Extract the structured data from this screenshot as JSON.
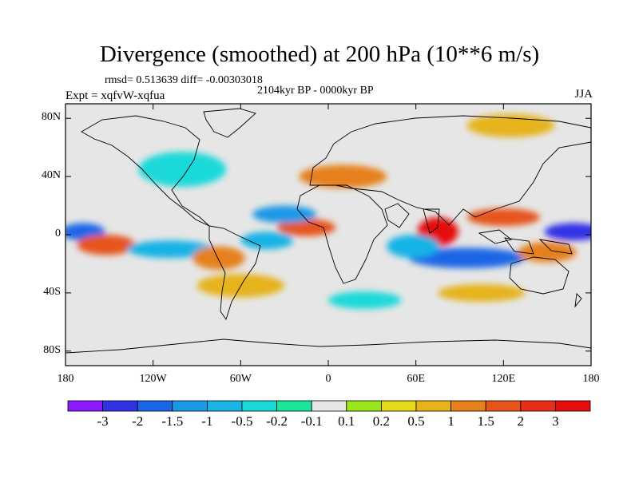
{
  "chart_data": {
    "type": "heatmap",
    "title": "Divergence (smoothed) at 200 hPa (10**6 m/s)",
    "stats": "rmsd= 0.513639 diff= -0.00303018",
    "period": "2104kyr BP - 0000kyr BP",
    "experiment": "Expt = xqfvW-xqfua",
    "season": "JJA",
    "xlim": [
      -180,
      180
    ],
    "ylim": [
      -90,
      90
    ],
    "x_ticks": [
      {
        "value": -180,
        "label": "180"
      },
      {
        "value": -120,
        "label": "120W"
      },
      {
        "value": -60,
        "label": "60W"
      },
      {
        "value": 0,
        "label": "0"
      },
      {
        "value": 60,
        "label": "60E"
      },
      {
        "value": 120,
        "label": "120E"
      },
      {
        "value": 180,
        "label": "180"
      }
    ],
    "y_ticks": [
      {
        "value": 80,
        "label": "80N"
      },
      {
        "value": 40,
        "label": "40N"
      },
      {
        "value": 0,
        "label": "0"
      },
      {
        "value": -40,
        "label": "40S"
      },
      {
        "value": -80,
        "label": "80S"
      }
    ],
    "colorbar": {
      "labels": [
        "-3",
        "-2",
        "-1.5",
        "-1",
        "-0.5",
        "-0.2",
        "-0.1",
        "0.1",
        "0.2",
        "0.5",
        "1",
        "1.5",
        "2",
        "3"
      ],
      "colors": [
        "#8c1aff",
        "#3333e6",
        "#1a66e6",
        "#1a99e6",
        "#19b3e6",
        "#1ad9d9",
        "#1ae699",
        "#e6e6e6",
        "#99e61a",
        "#e6d91a",
        "#e6b31a",
        "#e6801a",
        "#e6551a",
        "#e62e1a",
        "#e60d0d"
      ]
    },
    "features": [
      {
        "lon": 75,
        "lat": 2,
        "value": 3,
        "rx": 14,
        "ry": 10
      },
      {
        "lon": 95,
        "lat": -16,
        "value": -2,
        "rx": 40,
        "ry": 7
      },
      {
        "lon": 58,
        "lat": -8,
        "value": -1,
        "rx": 18,
        "ry": 8
      },
      {
        "lon": 168,
        "lat": 2,
        "value": -2.5,
        "rx": 20,
        "ry": 6
      },
      {
        "lon": -168,
        "lat": 2,
        "value": -2,
        "rx": 15,
        "ry": 6
      },
      {
        "lon": -152,
        "lat": -7,
        "value": 1.5,
        "rx": 20,
        "ry": 7
      },
      {
        "lon": -108,
        "lat": -10,
        "value": -1,
        "rx": 30,
        "ry": 6
      },
      {
        "lon": -75,
        "lat": -16,
        "value": 1,
        "rx": 18,
        "ry": 8
      },
      {
        "lon": -15,
        "lat": 5,
        "value": 1.5,
        "rx": 20,
        "ry": 6
      },
      {
        "lon": -30,
        "lat": 14,
        "value": -1.5,
        "rx": 22,
        "ry": 6
      },
      {
        "lon": -42,
        "lat": -4,
        "value": -1,
        "rx": 18,
        "ry": 6
      },
      {
        "lon": 120,
        "lat": 12,
        "value": 1.5,
        "rx": 25,
        "ry": 6
      },
      {
        "lon": 150,
        "lat": -12,
        "value": 1,
        "rx": 20,
        "ry": 7
      },
      {
        "lon": 10,
        "lat": 40,
        "value": 1,
        "rx": 30,
        "ry": 8
      },
      {
        "lon": 125,
        "lat": 75,
        "value": 0.5,
        "rx": 30,
        "ry": 8
      },
      {
        "lon": -100,
        "lat": 45,
        "value": -0.5,
        "rx": 30,
        "ry": 12
      },
      {
        "lon": -60,
        "lat": -35,
        "value": 0.5,
        "rx": 30,
        "ry": 8
      },
      {
        "lon": 25,
        "lat": -45,
        "value": -0.5,
        "rx": 25,
        "ry": 6
      },
      {
        "lon": 105,
        "lat": -40,
        "value": 0.5,
        "rx": 30,
        "ry": 6
      }
    ]
  }
}
